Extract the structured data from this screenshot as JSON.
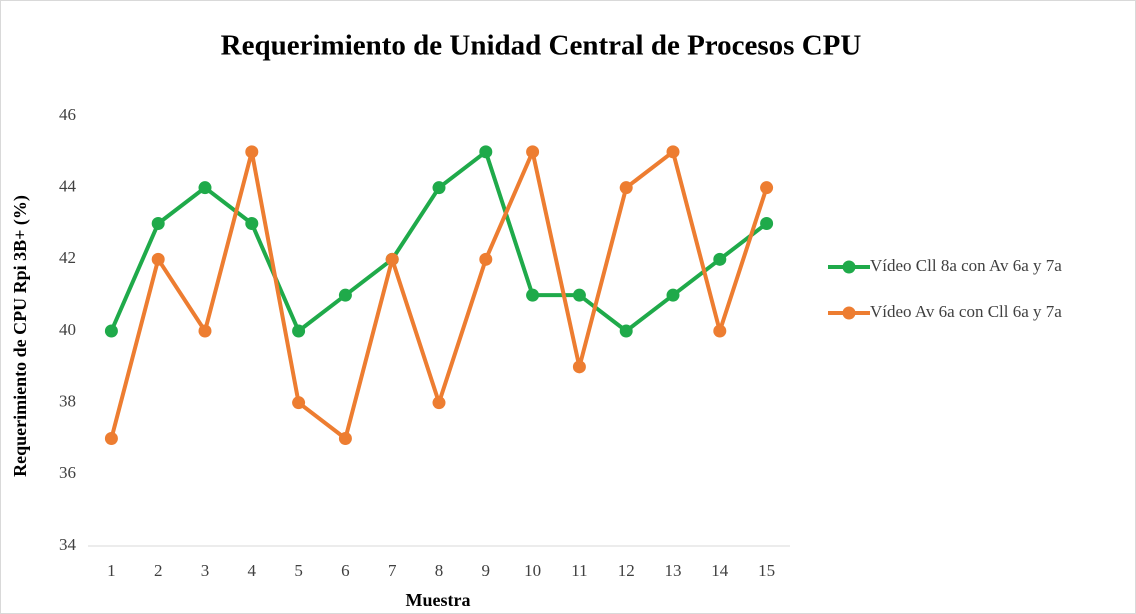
{
  "chart_data": {
    "type": "line",
    "title": "Requerimiento de Unidad Central de Procesos CPU",
    "x_label": "Muestra",
    "y_label": "Requerimiento de CPU Rpi  3B+ (%)",
    "categories": [
      "1",
      "2",
      "3",
      "4",
      "5",
      "6",
      "7",
      "8",
      "9",
      "10",
      "11",
      "12",
      "13",
      "14",
      "15"
    ],
    "series": [
      {
        "name": "Vídeo Cll 8a con Av 6a y 7a",
        "color": "#1faa4a",
        "values": [
          40,
          43,
          44,
          43,
          40,
          41,
          42,
          44,
          45,
          41,
          41,
          40,
          41,
          42,
          43
        ]
      },
      {
        "name": "Vídeo Av 6a con Cll 6a y 7a",
        "color": "#ed7d31",
        "values": [
          37,
          42,
          40,
          45,
          38,
          37,
          42,
          38,
          42,
          45,
          39,
          44,
          45,
          40,
          44
        ]
      }
    ],
    "ylim": [
      34,
      46
    ],
    "yticks": [
      34,
      36,
      38,
      40,
      42,
      44,
      46
    ],
    "grid": false,
    "legend": "right"
  }
}
